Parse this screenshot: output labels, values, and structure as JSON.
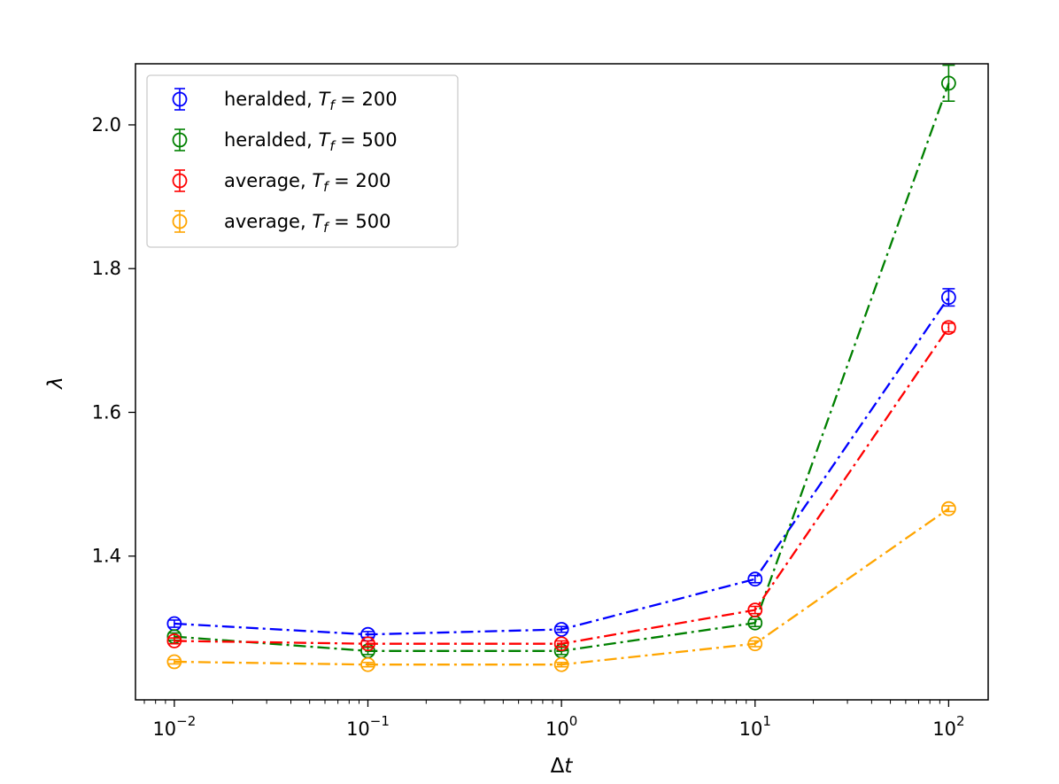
{
  "chart_data": {
    "type": "line",
    "xlabel": "Δt",
    "ylabel": "λ",
    "xscale": "log",
    "xlim": [
      0.0063,
      160
    ],
    "ylim": [
      1.2,
      2.085
    ],
    "grid": false,
    "legend_position": "top-left",
    "x": [
      0.01,
      0.1,
      1,
      10,
      100
    ],
    "x_ticks": [
      {
        "value": 0.01,
        "base": "10",
        "exp": "−2"
      },
      {
        "value": 0.1,
        "base": "10",
        "exp": "−1"
      },
      {
        "value": 1,
        "base": "10",
        "exp": "0"
      },
      {
        "value": 10,
        "base": "10",
        "exp": "1"
      },
      {
        "value": 100,
        "base": "10",
        "exp": "2"
      }
    ],
    "y_ticks": [
      {
        "value": 1.4,
        "label": "1.4"
      },
      {
        "value": 1.6,
        "label": "1.6"
      },
      {
        "value": 1.8,
        "label": "1.8"
      },
      {
        "value": 2.0,
        "label": "2.0"
      }
    ],
    "series": [
      {
        "legend_prefix": "heralded, ",
        "legend_sym": "T",
        "legend_sub": "f",
        "legend_suffix": " = 200",
        "color": "#0000ff",
        "values": [
          1.306,
          1.291,
          1.298,
          1.368,
          1.76
        ],
        "errors": [
          0.005,
          0.004,
          0.004,
          0.005,
          0.012
        ]
      },
      {
        "legend_prefix": "heralded, ",
        "legend_sym": "T",
        "legend_sub": "f",
        "legend_suffix": " = 500",
        "color": "#008000",
        "values": [
          1.288,
          1.268,
          1.268,
          1.307,
          2.058
        ],
        "errors": [
          0.005,
          0.005,
          0.005,
          0.005,
          0.025
        ]
      },
      {
        "legend_prefix": "average, ",
        "legend_sym": "T",
        "legend_sub": "f",
        "legend_suffix": " = 200",
        "color": "#ff0000",
        "values": [
          1.282,
          1.278,
          1.278,
          1.325,
          1.718
        ],
        "errors": [
          0.004,
          0.004,
          0.004,
          0.005,
          0.006
        ]
      },
      {
        "legend_prefix": "average, ",
        "legend_sym": "T",
        "legend_sub": "f",
        "legend_suffix": " = 500",
        "color": "#ffa500",
        "values": [
          1.253,
          1.249,
          1.249,
          1.278,
          1.466
        ],
        "errors": [
          0.003,
          0.003,
          0.003,
          0.004,
          0.004
        ]
      }
    ]
  }
}
